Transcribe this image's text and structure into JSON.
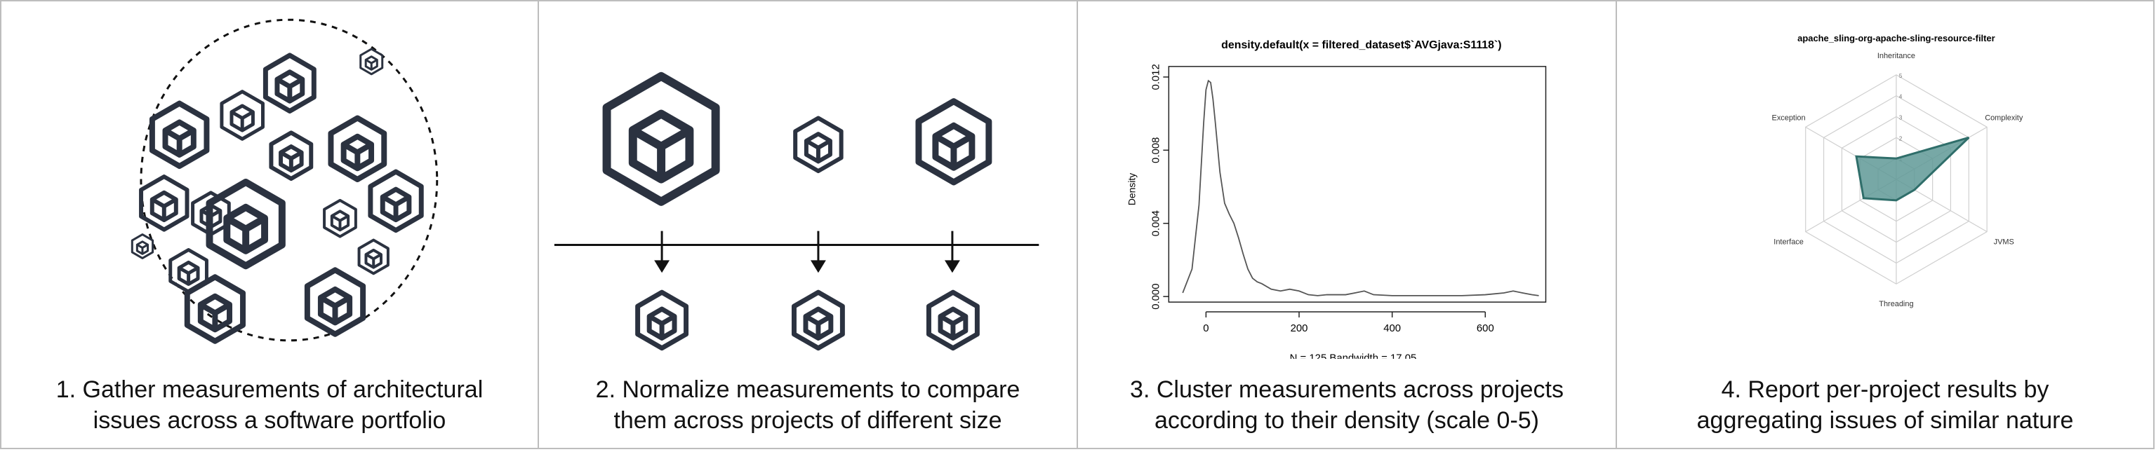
{
  "panels": [
    {
      "caption_line1": "1. Gather measurements of architectural",
      "caption_line2": "issues across a software portfolio"
    },
    {
      "caption_line1": "2. Normalize measurements to compare",
      "caption_line2": "them across projects of different size"
    },
    {
      "caption_line1": "3. Cluster measurements across projects",
      "caption_line2": "according to their density (scale 0-5)"
    },
    {
      "caption_line1": "4. Report per-project results by",
      "caption_line2": "aggregating issues of similar nature"
    }
  ],
  "colors": {
    "cube": "#2b3240",
    "radar_fill": "#5f9996",
    "radar_stroke": "#2f6e6a",
    "curve": "#555555"
  },
  "icons": [
    "cube-icon",
    "arrow-down-icon"
  ],
  "chart_data": [
    {
      "type": "line",
      "title": "density.default(x = filtered_dataset$`AVGjava:S1118`)",
      "xlabel": "N = 125   Bandwidth = 17.05",
      "ylabel": "Density",
      "x_ticks": [
        0,
        200,
        400,
        600
      ],
      "y_ticks": [
        "0.000",
        "0.004",
        "0.008",
        "0.012"
      ],
      "xlim": [
        -50,
        715
      ],
      "ylim": [
        0,
        0.0125
      ],
      "x": [
        -50,
        -30,
        -15,
        -5,
        0,
        5,
        10,
        15,
        20,
        30,
        40,
        50,
        60,
        70,
        80,
        90,
        100,
        110,
        120,
        140,
        160,
        180,
        200,
        220,
        240,
        260,
        300,
        320,
        340,
        360,
        400,
        450,
        500,
        550,
        600,
        640,
        660,
        680,
        700,
        715
      ],
      "y": [
        0.0002,
        0.0015,
        0.005,
        0.0095,
        0.0113,
        0.0118,
        0.0117,
        0.0108,
        0.0095,
        0.0068,
        0.0051,
        0.0045,
        0.004,
        0.0032,
        0.0023,
        0.0015,
        0.001,
        0.0008,
        0.0007,
        0.0004,
        0.0003,
        0.0004,
        0.0003,
        0.0001,
        5e-05,
        0.0001,
        0.0001,
        0.0002,
        0.0003,
        0.0001,
        5e-05,
        5e-05,
        5e-05,
        5e-05,
        0.0001,
        0.0002,
        0.0003,
        0.0002,
        0.0001,
        5e-05
      ]
    },
    {
      "type": "radar",
      "title": "apache_sling-org-apache-sling-resource-filter",
      "axes": [
        "Inheritance",
        "Complexity",
        "JVMS",
        "Threading",
        "Interface",
        "Exception"
      ],
      "scale": [
        0,
        5
      ],
      "rings": [
        "1",
        "2",
        "3",
        "4",
        "5"
      ],
      "values": [
        1,
        4,
        1,
        1,
        1.8,
        2.2
      ]
    }
  ]
}
